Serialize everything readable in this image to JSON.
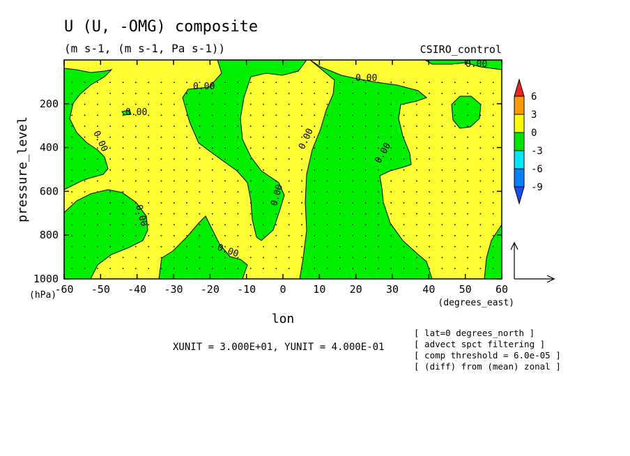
{
  "chart_data": {
    "type": "contour",
    "title": "U (U, -OMG) composite",
    "subtitle": "(m s-1, (m s-1, Pa s-1))",
    "model_label": "CSIRO_control",
    "xlabel": "lon",
    "xunit_label": "(degrees_east)",
    "ylabel": "pressure_level",
    "yunit_label": "(hPa)",
    "xlim": [
      -60,
      60
    ],
    "ylim": [
      1000,
      0
    ],
    "xticks": [
      -60,
      -50,
      -40,
      -30,
      -20,
      -10,
      0,
      10,
      20,
      30,
      40,
      50,
      60
    ],
    "yticks": [
      200,
      400,
      600,
      800,
      1000
    ],
    "contour_labels": [
      "0.00",
      "0.00",
      "0.00",
      "0.00",
      "0.00",
      "0.00",
      "0.00",
      "0.00",
      "0.00",
      "0.00"
    ],
    "colorbar": {
      "levels": [
        "6",
        "3",
        "0",
        "-3",
        "-6",
        "-9"
      ],
      "colors": [
        "#e8241c",
        "#ff9a00",
        "#ffff00",
        "#00e600",
        "#00e5ff",
        "#0080ff",
        "#1a4cf0"
      ]
    },
    "fill_colors": {
      "positive": "#ffff33",
      "negative": "#00ee00"
    },
    "footer": "XUNIT = 3.000E+01, YUNIT = 4.000E-01",
    "notes": [
      "[ lat=0 degrees_north ]",
      "[ advect spct filtering ]",
      "[ comp threshold = 6.0e-05 ]",
      "[ (diff) from (mean) zonal ]"
    ]
  }
}
